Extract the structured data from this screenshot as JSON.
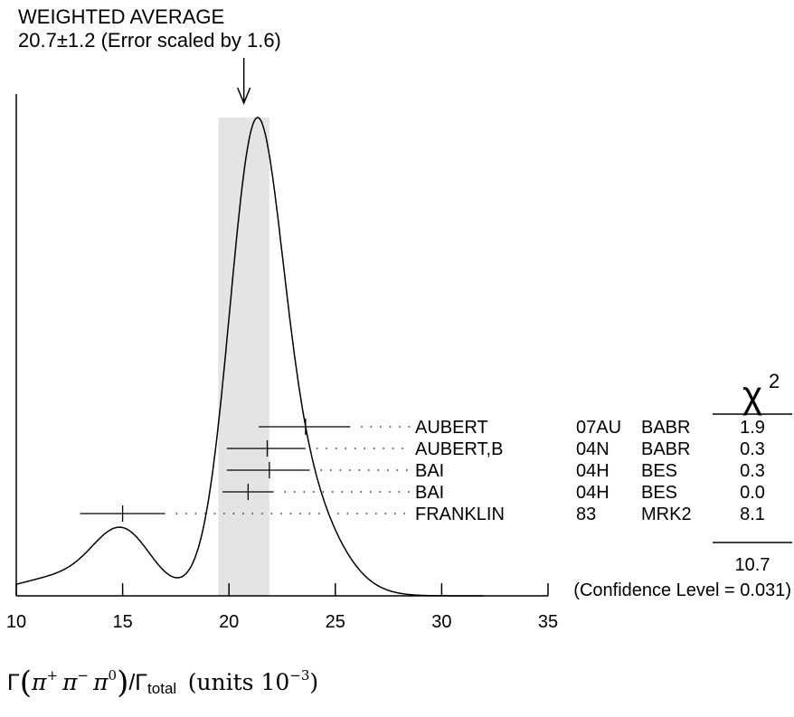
{
  "chart_data": {
    "type": "ideogram",
    "title": "WEIGHTED AVERAGE",
    "subtitle": "20.7±1.2 (Error scaled by 1.6)",
    "weighted_average": {
      "value": 20.7,
      "error": 1.2,
      "scale_factor": 1.6
    },
    "xlim": [
      10,
      35
    ],
    "xticks": [
      10,
      15,
      20,
      25,
      30,
      35
    ],
    "xlabel": {
      "gamma": "Γ",
      "open": "(",
      "pi1": "π",
      "sup1": "+",
      "pi2": "π",
      "sup2": "−",
      "pi3": "π",
      "sup3": "0",
      "close": ")",
      "slash_gamma": "/Γ",
      "sub": "total",
      "units": "(units 10",
      "exp": "−3",
      "units_close": ")"
    },
    "chi2_header": "χ",
    "chi2_header_sup": "2",
    "measurements": [
      {
        "author": "AUBERT",
        "ref": "07AU",
        "experiment": "BABR",
        "value": 23.6,
        "low": 21.4,
        "high": 25.7,
        "chi2": "1.9"
      },
      {
        "author": "AUBERT,B",
        "ref": "04N",
        "experiment": "BABR",
        "value": 21.8,
        "low": 19.9,
        "high": 23.6,
        "chi2": "0.3"
      },
      {
        "author": "BAI",
        "ref": "04H",
        "experiment": "BES",
        "value": 21.9,
        "low": 19.9,
        "high": 23.8,
        "chi2": "0.3"
      },
      {
        "author": "BAI",
        "ref": "04H",
        "experiment": "BES",
        "value": 20.9,
        "low": 19.7,
        "high": 22.1,
        "chi2": "0.0"
      },
      {
        "author": "FRANKLIN",
        "ref": "83",
        "experiment": "MRK2",
        "value": 15.0,
        "low": 13.0,
        "high": 17.0,
        "chi2": "8.1"
      }
    ],
    "chi2_total": "10.7",
    "confidence_level": "(Confidence Level = 0.031)",
    "band": {
      "low": 19.5,
      "high": 21.9,
      "color": "#e4e4e4"
    },
    "curve_peaks": [
      {
        "x": 21.2,
        "rel_height": 1.0
      },
      {
        "x": 15.0,
        "rel_height": 0.17
      }
    ]
  }
}
